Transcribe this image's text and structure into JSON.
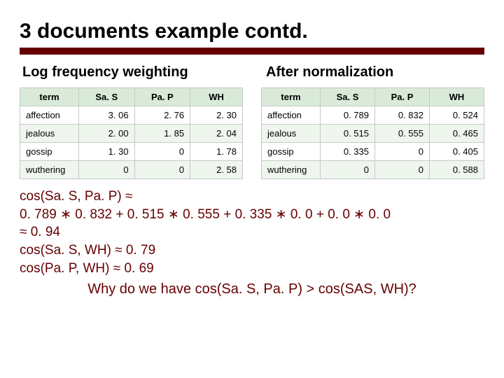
{
  "title": "3 documents example contd.",
  "subtitle_left": "Log frequency weighting",
  "subtitle_right": "After normalization",
  "colors": {
    "accent": "#660000",
    "header_bg": "#d9ead9",
    "alt_row_bg": "#eef6ee",
    "border": "#c8c8c8",
    "background": "#ffffff",
    "text": "#000000"
  },
  "table_left": {
    "columns": [
      "term",
      "Sa. S",
      "Pa. P",
      "WH"
    ],
    "rows": [
      {
        "term": "affection",
        "sas": "3. 06",
        "pap": "2. 76",
        "wh": "2. 30"
      },
      {
        "term": "jealous",
        "sas": "2. 00",
        "pap": "1. 85",
        "wh": "2. 04"
      },
      {
        "term": "gossip",
        "sas": "1. 30",
        "pap": "0",
        "wh": "1. 78"
      },
      {
        "term": "wuthering",
        "sas": "0",
        "pap": "0",
        "wh": "2. 58"
      }
    ]
  },
  "table_right": {
    "columns": [
      "term",
      "Sa. S",
      "Pa. P",
      "WH"
    ],
    "rows": [
      {
        "term": "affection",
        "sas": "0. 789",
        "pap": "0. 832",
        "wh": "0. 524"
      },
      {
        "term": "jealous",
        "sas": "0. 515",
        "pap": "0. 555",
        "wh": "0. 465"
      },
      {
        "term": "gossip",
        "sas": "0. 335",
        "pap": "0",
        "wh": "0. 405"
      },
      {
        "term": "wuthering",
        "sas": "0",
        "pap": "0",
        "wh": "0. 588"
      }
    ]
  },
  "math": {
    "line1": "cos(Sa. S, Pa. P) ≈",
    "line2": "0. 789 ∗ 0. 832 + 0. 515 ∗ 0. 555 + 0. 335 ∗ 0. 0 + 0. 0 ∗ 0. 0",
    "line3": "≈ 0. 94",
    "line4": "cos(Sa. S, WH) ≈ 0. 79",
    "line5": "cos(Pa. P, WH) ≈ 0. 69"
  },
  "question": "Why do we have cos(Sa. S, Pa. P) > cos(SAS, WH)?"
}
